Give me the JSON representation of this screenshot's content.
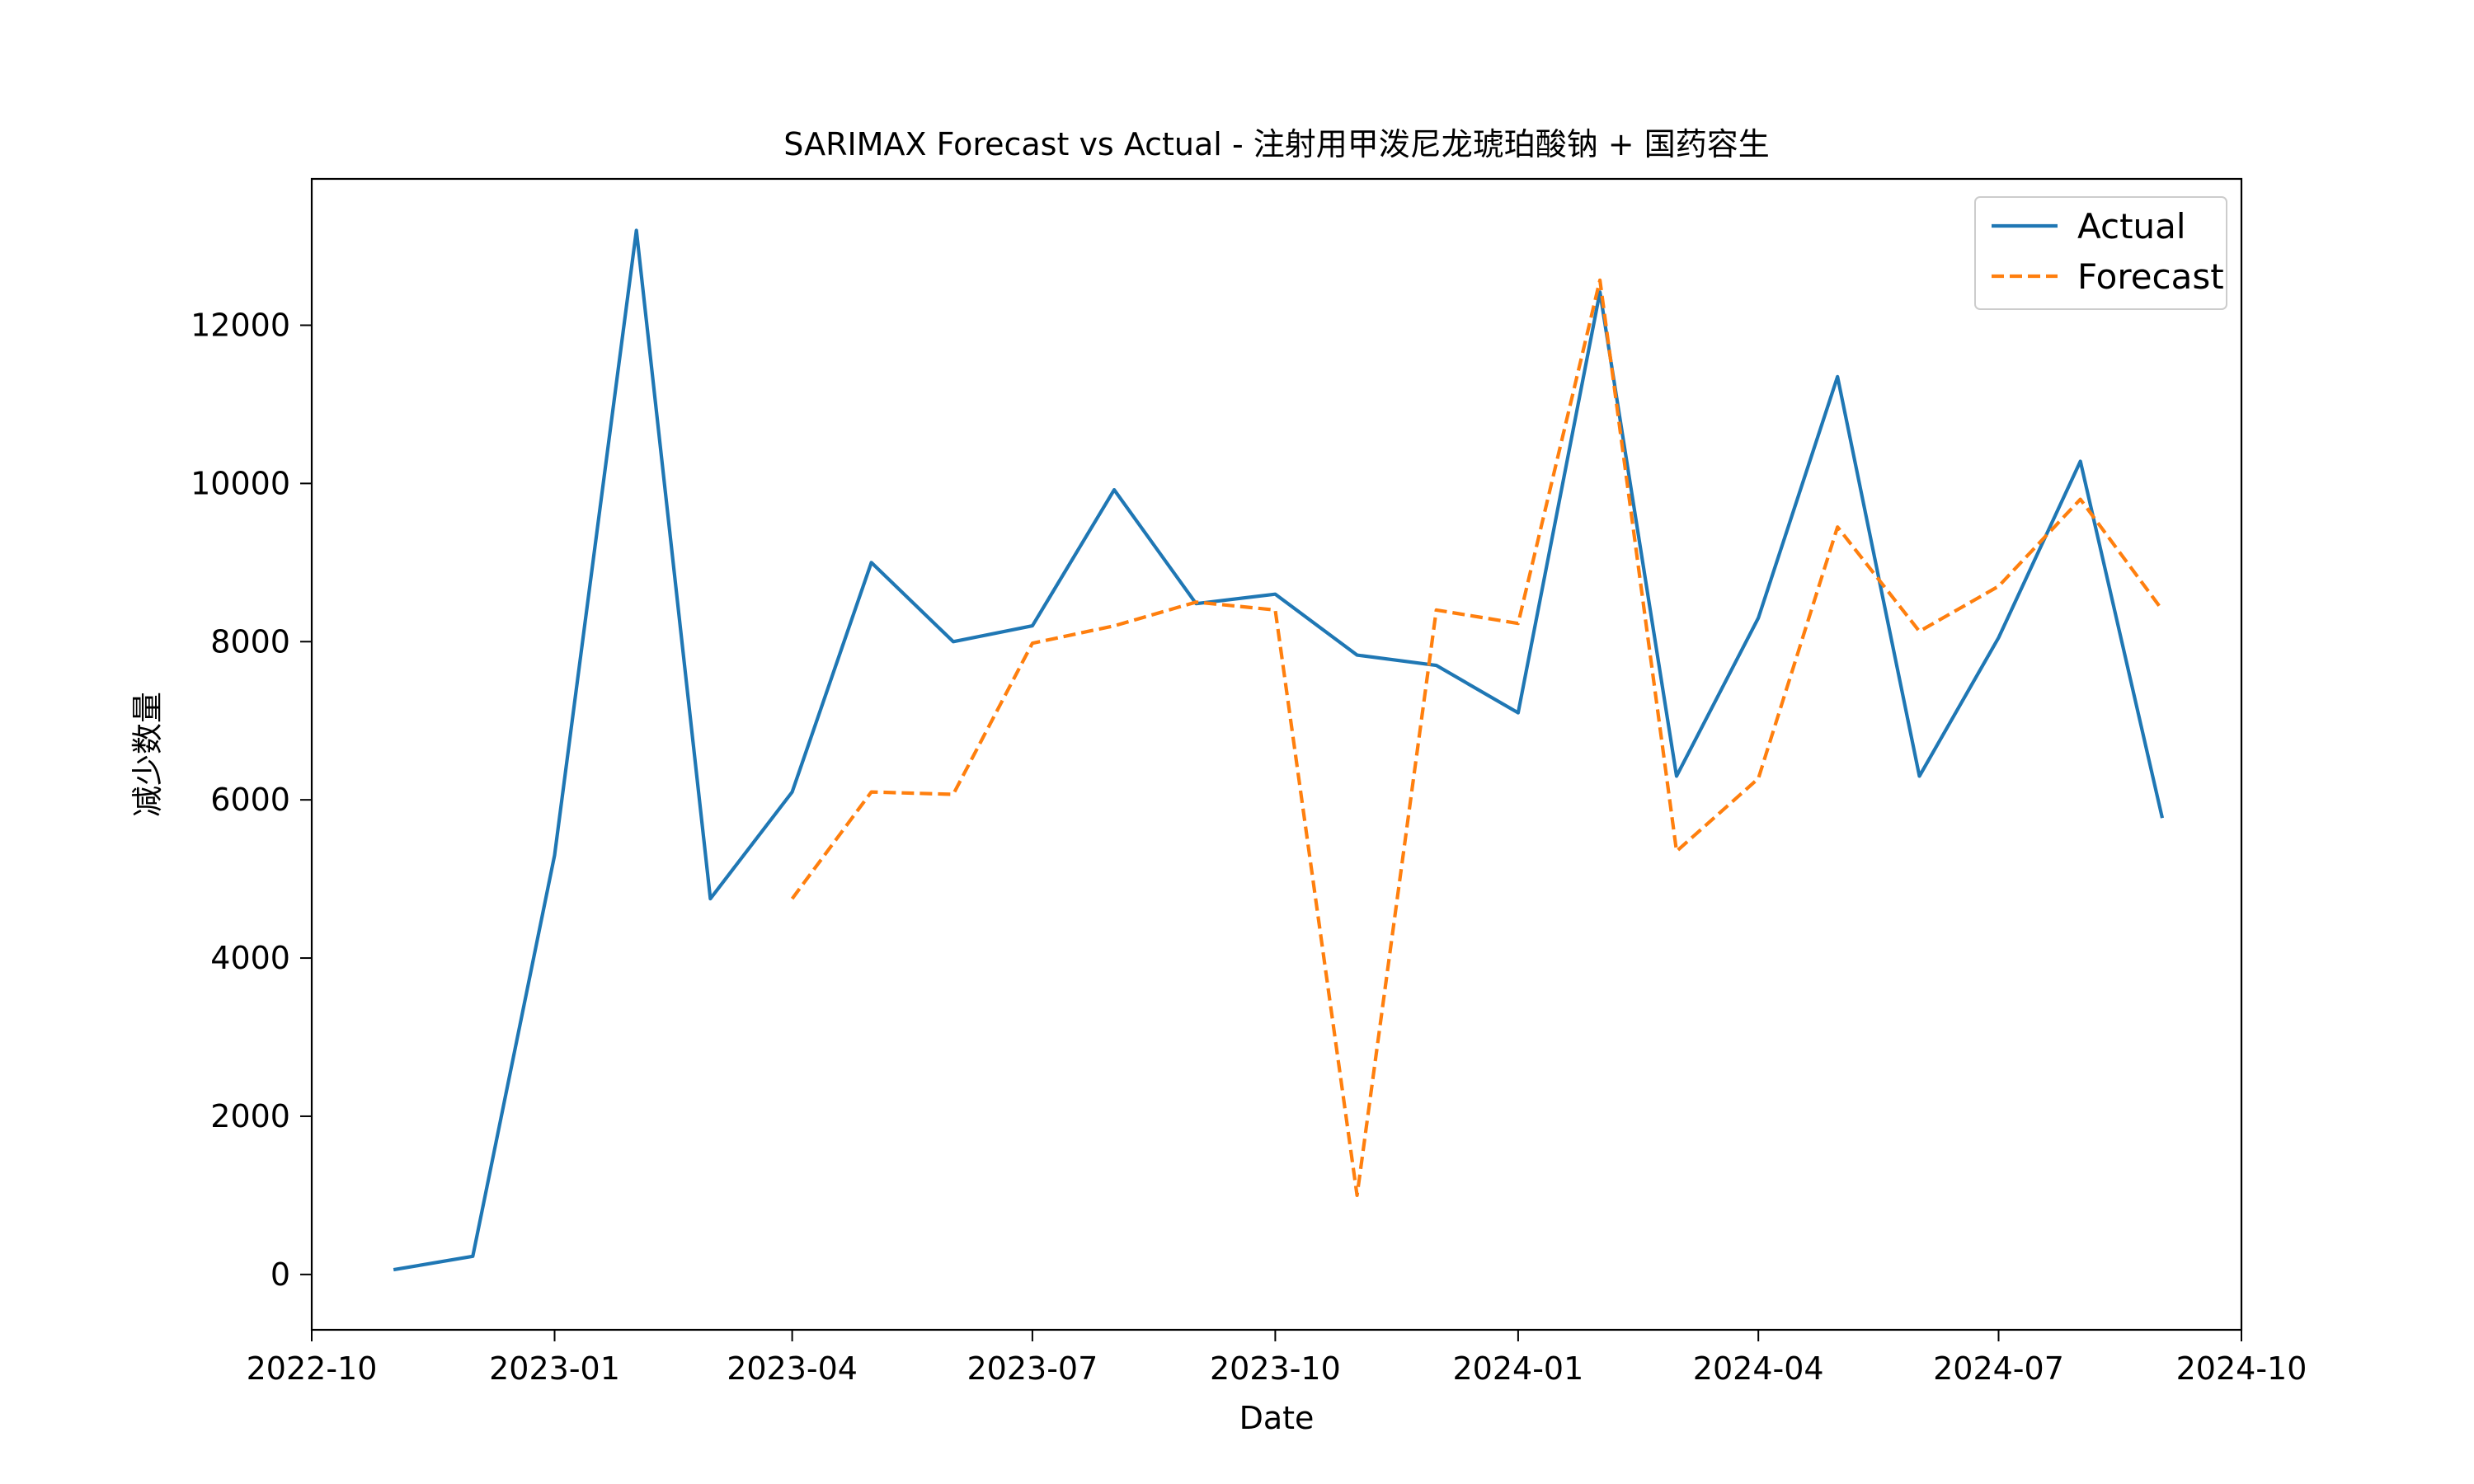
{
  "chart_data": {
    "type": "line",
    "title": "SARIMAX Forecast vs Actual - 注射用甲泼尼龙琥珀酸钠 + 国药容生",
    "xlabel": "Date",
    "ylabel": "减少数量",
    "xlim": [
      "2022-10-01",
      "2024-10-01"
    ],
    "ylim": [
      -700,
      13850
    ],
    "x_ticks": [
      "2022-10",
      "2023-01",
      "2023-04",
      "2023-07",
      "2023-10",
      "2024-01",
      "2024-04",
      "2024-07",
      "2024-10"
    ],
    "y_ticks": [
      0,
      2000,
      4000,
      6000,
      8000,
      10000,
      12000
    ],
    "grid": false,
    "legend_position": "top-right",
    "series": [
      {
        "name": "Actual",
        "color": "#1f77b4",
        "style": "solid",
        "x": [
          "2022-11-01",
          "2022-12-01",
          "2023-01-01",
          "2023-02-01",
          "2023-03-01",
          "2023-04-01",
          "2023-05-01",
          "2023-06-01",
          "2023-07-01",
          "2023-08-01",
          "2023-09-01",
          "2023-10-01",
          "2023-11-01",
          "2023-12-01",
          "2024-01-01",
          "2024-02-01",
          "2024-03-01",
          "2024-04-01",
          "2024-05-01",
          "2024-06-01",
          "2024-07-01",
          "2024-08-01",
          "2024-09-01"
        ],
        "y": [
          60,
          230,
          5300,
          13200,
          4750,
          6100,
          9000,
          8000,
          8200,
          9920,
          8480,
          8600,
          7830,
          7700,
          7100,
          12420,
          6300,
          8300,
          11350,
          6300,
          8050,
          10280,
          5770
        ]
      },
      {
        "name": "Forecast",
        "color": "#ff7f0e",
        "style": "dashed",
        "x": [
          "2023-04-01",
          "2023-05-01",
          "2023-06-01",
          "2023-07-01",
          "2023-08-01",
          "2023-09-01",
          "2023-10-01",
          "2023-11-01",
          "2023-12-01",
          "2024-01-01",
          "2024-02-01",
          "2024-03-01",
          "2024-04-01",
          "2024-05-01",
          "2024-06-01",
          "2024-07-01",
          "2024-08-01",
          "2024-09-01"
        ],
        "y": [
          4750,
          6100,
          6070,
          7980,
          8200,
          8500,
          8400,
          1000,
          8400,
          8230,
          12570,
          5350,
          6270,
          9450,
          8130,
          8700,
          9800,
          8400
        ]
      }
    ]
  }
}
